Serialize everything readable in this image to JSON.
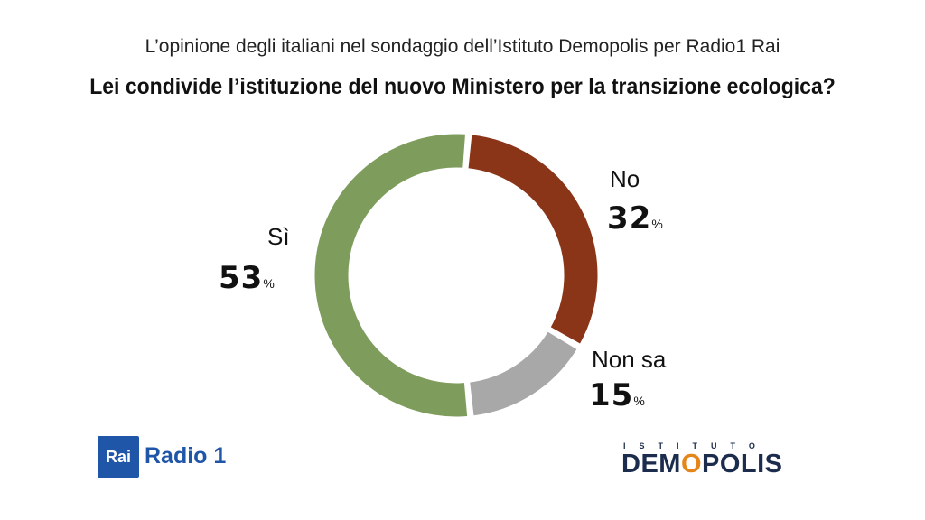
{
  "header": {
    "subtitle": "L’opinione degli italiani nel sondaggio dell’Istituto Demopolis per Radio1 Rai",
    "title": "Lei condivide l’istituzione del nuovo Ministero per la transizione ecologica?"
  },
  "chart_data": {
    "type": "pie",
    "style": "donut",
    "categories": [
      "No",
      "Non sa",
      "Sì"
    ],
    "values": [
      32,
      15,
      53
    ],
    "unit": "%",
    "colors": [
      "#8a3418",
      "#a8a8a8",
      "#7e9c5c"
    ],
    "value_labels": [
      "32",
      "15",
      "53"
    ]
  },
  "logos": {
    "rai_box": "Rai",
    "radio_label": "Radio 1",
    "demopolis_top": "ISTITUTO",
    "demopolis_pre": "DEM",
    "demopolis_o": "O",
    "demopolis_post": "POLIS"
  },
  "colors": {
    "rai_blue": "#1f56a8",
    "demopolis_navy": "#1c2c4c",
    "demopolis_orange": "#e5861a"
  }
}
